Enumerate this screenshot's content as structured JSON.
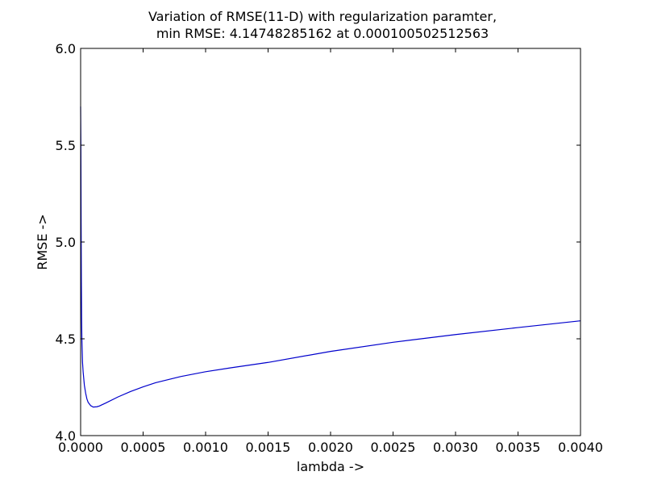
{
  "chart_data": {
    "type": "line",
    "title_lines": [
      "Variation of RMSE(11-D) with regularization paramter,",
      "min RMSE: 4.14748285162 at 0.000100502512563"
    ],
    "xlabel": "lambda ->",
    "ylabel": "RMSE ->",
    "xlim": [
      0.0,
      0.004
    ],
    "ylim": [
      4.0,
      6.0
    ],
    "x_ticks": [
      0.0,
      0.0005,
      0.001,
      0.0015,
      0.002,
      0.0025,
      0.003,
      0.0035,
      0.004
    ],
    "x_tick_labels": [
      "0.0000",
      "0.0005",
      "0.0010",
      "0.0015",
      "0.0020",
      "0.0025",
      "0.0030",
      "0.0035",
      "0.0040"
    ],
    "y_ticks": [
      4.0,
      4.5,
      5.0,
      5.5,
      6.0
    ],
    "y_tick_labels": [
      "4.0",
      "4.5",
      "5.0",
      "5.5",
      "6.0"
    ],
    "grid": false,
    "legend": "none",
    "line_color": "#0000cc",
    "series": [
      {
        "x": [
          0.0,
          2e-06,
          4e-06,
          6e-06,
          8e-06,
          1e-05,
          1.5e-05,
          2e-05,
          3e-05,
          4e-05,
          5e-05,
          6e-05,
          8e-05,
          0.0001005,
          0.00013,
          0.00015,
          0.0002,
          0.0003,
          0.0004,
          0.0005,
          0.0006,
          0.0008,
          0.001,
          0.0012,
          0.0015,
          0.002,
          0.0025,
          0.003,
          0.0035,
          0.004
        ],
        "y": [
          5.7,
          5.5,
          5.1,
          4.8,
          4.6,
          4.5,
          4.38,
          4.33,
          4.26,
          4.22,
          4.19,
          4.172,
          4.155,
          4.1475,
          4.149,
          4.153,
          4.168,
          4.2,
          4.228,
          4.252,
          4.273,
          4.305,
          4.33,
          4.35,
          4.378,
          4.435,
          4.482,
          4.522,
          4.558,
          4.593
        ]
      }
    ]
  }
}
